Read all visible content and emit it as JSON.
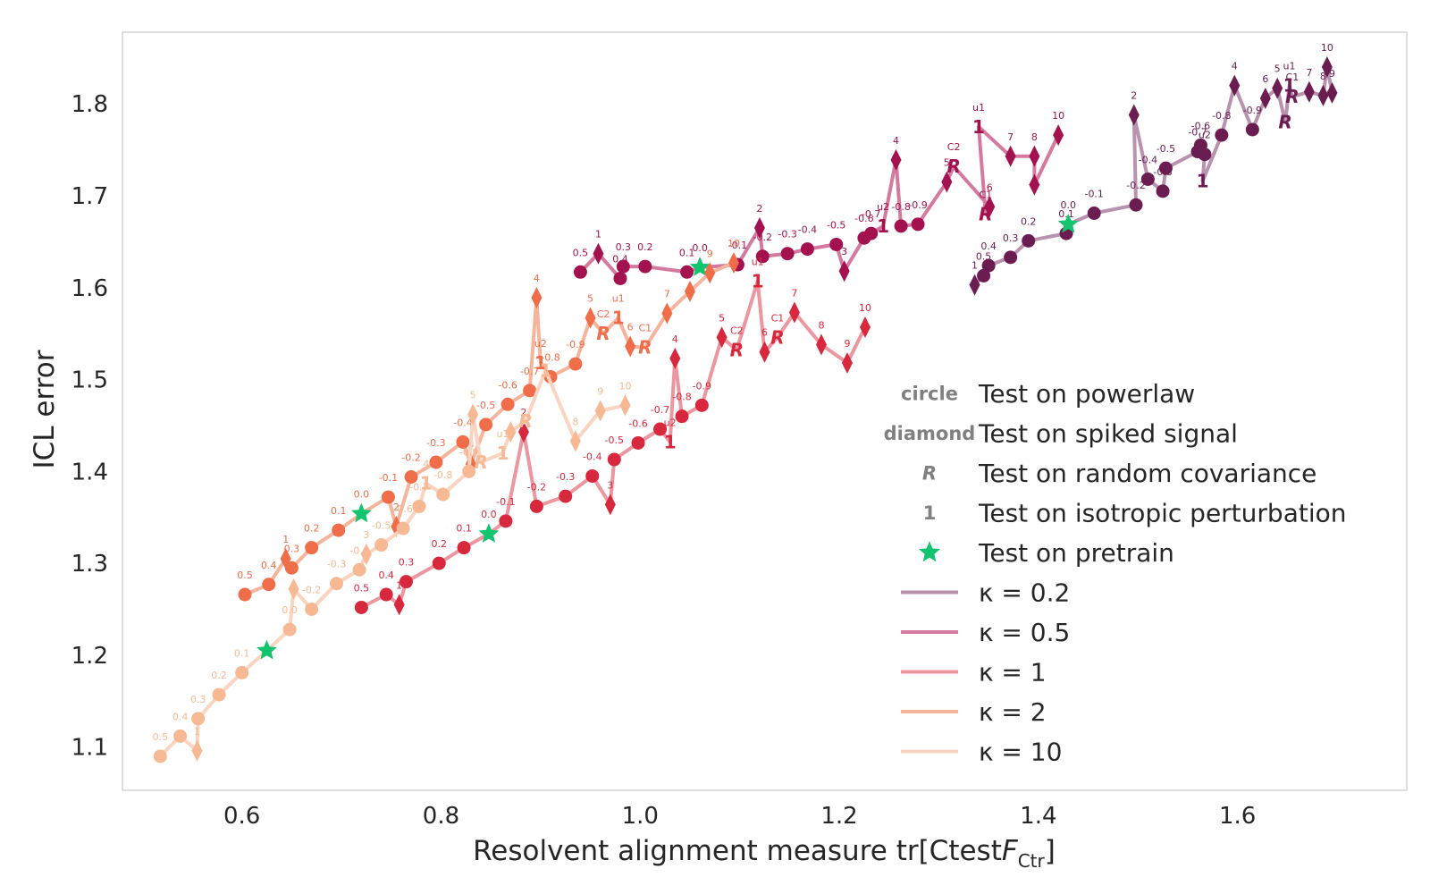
{
  "chart_data": {
    "type": "line",
    "xlabel": "Resolvent alignment measure tr[Ctest",
    "xlabel_italic": "F",
    "xlabel_sub": "Ctr",
    "xlabel_close": "]",
    "ylabel": "ICL error",
    "xlim": [
      0.48,
      1.77
    ],
    "ylim": [
      1.053,
      1.878
    ],
    "xticks": [
      0.6,
      0.8,
      1.0,
      1.2,
      1.4,
      1.6
    ],
    "xtick_labels": [
      "0.6",
      "0.8",
      "1.0",
      "1.2",
      "1.4",
      "1.6"
    ],
    "yticks": [
      1.1,
      1.2,
      1.3,
      1.4,
      1.5,
      1.6,
      1.7,
      1.8
    ],
    "ytick_labels": [
      "1.1",
      "1.2",
      "1.3",
      "1.4",
      "1.5",
      "1.6",
      "1.7",
      "1.8"
    ],
    "grid": false,
    "legend_position": "lower-right",
    "legend_markers": [
      {
        "label": "Test on powerlaw",
        "marker": "circle",
        "color": "#808080"
      },
      {
        "label": "Test on spiked signal",
        "marker": "diamond",
        "color": "#808080"
      },
      {
        "label": "Test on random covariance",
        "marker": "R",
        "color": "#808080"
      },
      {
        "label": "Test on isotropic perturbation",
        "marker": "1",
        "color": "#808080"
      },
      {
        "label": "Test on pretrain",
        "marker": "star",
        "color": "#12c46e"
      }
    ],
    "legend_kappa_prefix": "κ =",
    "series": [
      {
        "name": "0.2",
        "color": "#6b1d52",
        "line_color": "#b892ae",
        "points": [
          {
            "x": 1.336,
            "y": 1.603,
            "m": "d",
            "label": "1"
          },
          {
            "x": 1.345,
            "y": 1.613,
            "m": "o",
            "label": "0.5"
          },
          {
            "x": 1.35,
            "y": 1.624,
            "m": "o",
            "label": "0.4"
          },
          {
            "x": 1.372,
            "y": 1.633,
            "m": "o",
            "label": "0.3"
          },
          {
            "x": 1.39,
            "y": 1.651,
            "m": "o",
            "label": "0.2"
          },
          {
            "x": 1.428,
            "y": 1.659,
            "m": "o",
            "label": "0.1"
          },
          {
            "x": 1.43,
            "y": 1.669,
            "m": "star",
            "label": "0.0"
          },
          {
            "x": 1.456,
            "y": 1.681,
            "m": "o",
            "label": "-0.1"
          },
          {
            "x": 1.498,
            "y": 1.69,
            "m": "o",
            "label": "-0.2"
          },
          {
            "x": 1.496,
            "y": 1.788,
            "m": "d",
            "label": "2"
          },
          {
            "x": 1.51,
            "y": 1.718,
            "m": "o",
            "label": "-0.4"
          },
          {
            "x": 1.525,
            "y": 1.705,
            "m": "o",
            "label": "-0.3"
          },
          {
            "x": 1.528,
            "y": 1.73,
            "m": "o",
            "label": "-0.5"
          },
          {
            "x": 1.56,
            "y": 1.748,
            "m": "o",
            "label": "-0.7"
          },
          {
            "x": 1.563,
            "y": 1.755,
            "m": "o",
            "label": "-0.6"
          },
          {
            "x": 1.567,
            "y": 1.745,
            "m": "o",
            "label": "u2"
          },
          {
            "x": 1.565,
            "y": 1.716,
            "m": "1",
            "label": ""
          },
          {
            "x": 1.584,
            "y": 1.766,
            "m": "o",
            "label": "-0.8"
          },
          {
            "x": 1.597,
            "y": 1.82,
            "m": "d",
            "label": "4"
          },
          {
            "x": 1.615,
            "y": 1.772,
            "m": "o",
            "label": "-0.9"
          },
          {
            "x": 1.628,
            "y": 1.806,
            "m": "d",
            "label": "6"
          },
          {
            "x": 1.64,
            "y": 1.817,
            "m": "d",
            "label": "5"
          },
          {
            "x": 1.648,
            "y": 1.78,
            "m": "R",
            "label": ""
          },
          {
            "x": 1.652,
            "y": 1.82,
            "m": "1",
            "label": "u1"
          },
          {
            "x": 1.655,
            "y": 1.808,
            "m": "R",
            "label": "C1"
          },
          {
            "x": 1.672,
            "y": 1.813,
            "m": "d",
            "label": "7"
          },
          {
            "x": 1.686,
            "y": 1.809,
            "m": "d",
            "label": "8"
          },
          {
            "x": 1.69,
            "y": 1.84,
            "m": "d",
            "label": "10"
          },
          {
            "x": 1.695,
            "y": 1.812,
            "m": "d",
            "label": "9"
          }
        ]
      },
      {
        "name": "0.5",
        "color": "#a3124f",
        "line_color": "#d47aa0",
        "points": [
          {
            "x": 0.94,
            "y": 1.617,
            "m": "o",
            "label": "0.5"
          },
          {
            "x": 0.958,
            "y": 1.637,
            "m": "d",
            "label": "1"
          },
          {
            "x": 0.98,
            "y": 1.61,
            "m": "o",
            "label": "0.4"
          },
          {
            "x": 0.983,
            "y": 1.623,
            "m": "o",
            "label": "0.3"
          },
          {
            "x": 1.005,
            "y": 1.623,
            "m": "o",
            "label": "0.2"
          },
          {
            "x": 1.047,
            "y": 1.617,
            "m": "o",
            "label": "0.1"
          },
          {
            "x": 1.06,
            "y": 1.622,
            "m": "star",
            "label": "0.0"
          },
          {
            "x": 1.098,
            "y": 1.625,
            "m": "o",
            "label": "-0.1"
          },
          {
            "x": 1.12,
            "y": 1.665,
            "m": "d",
            "label": "2"
          },
          {
            "x": 1.123,
            "y": 1.634,
            "m": "o",
            "label": "-0.2"
          },
          {
            "x": 1.148,
            "y": 1.637,
            "m": "o",
            "label": "-0.3"
          },
          {
            "x": 1.168,
            "y": 1.642,
            "m": "o",
            "label": "-0.4"
          },
          {
            "x": 1.197,
            "y": 1.647,
            "m": "o",
            "label": "-0.5"
          },
          {
            "x": 1.205,
            "y": 1.618,
            "m": "d",
            "label": "3"
          },
          {
            "x": 1.225,
            "y": 1.654,
            "m": "o",
            "label": "-0.6"
          },
          {
            "x": 1.232,
            "y": 1.659,
            "m": "o",
            "label": "-0.7"
          },
          {
            "x": 1.244,
            "y": 1.667,
            "m": "1",
            "label": "u2"
          },
          {
            "x": 1.257,
            "y": 1.739,
            "m": "d",
            "label": "4"
          },
          {
            "x": 1.262,
            "y": 1.667,
            "m": "o",
            "label": "-0.8"
          },
          {
            "x": 1.279,
            "y": 1.669,
            "m": "o",
            "label": "-0.9"
          },
          {
            "x": 1.308,
            "y": 1.715,
            "m": "d",
            "label": "5"
          },
          {
            "x": 1.315,
            "y": 1.732,
            "m": "R",
            "label": "C2"
          },
          {
            "x": 1.351,
            "y": 1.688,
            "m": "d",
            "label": "6"
          },
          {
            "x": 1.347,
            "y": 1.68,
            "m": "R",
            "label": "C1"
          },
          {
            "x": 1.34,
            "y": 1.775,
            "m": "1",
            "label": "u1"
          },
          {
            "x": 1.372,
            "y": 1.743,
            "m": "d",
            "label": "7"
          },
          {
            "x": 1.396,
            "y": 1.743,
            "m": "d",
            "label": "8"
          },
          {
            "x": 1.396,
            "y": 1.712,
            "m": "d",
            "label": ""
          },
          {
            "x": 1.42,
            "y": 1.766,
            "m": "d",
            "label": "10"
          }
        ]
      },
      {
        "name": "1",
        "color": "#d8283d",
        "line_color": "#ec96a0",
        "points": [
          {
            "x": 0.72,
            "y": 1.252,
            "m": "o",
            "label": "0.5"
          },
          {
            "x": 0.745,
            "y": 1.266,
            "m": "o",
            "label": "0.4"
          },
          {
            "x": 0.758,
            "y": 1.255,
            "m": "d",
            "label": "1"
          },
          {
            "x": 0.765,
            "y": 1.28,
            "m": "o",
            "label": "0.3"
          },
          {
            "x": 0.798,
            "y": 1.3,
            "m": "o",
            "label": "0.2"
          },
          {
            "x": 0.823,
            "y": 1.317,
            "m": "o",
            "label": "0.1"
          },
          {
            "x": 0.848,
            "y": 1.332,
            "m": "star",
            "label": "0.0"
          },
          {
            "x": 0.865,
            "y": 1.346,
            "m": "o",
            "label": "-0.1"
          },
          {
            "x": 0.883,
            "y": 1.443,
            "m": "d",
            "label": "2"
          },
          {
            "x": 0.896,
            "y": 1.362,
            "m": "o",
            "label": "-0.2"
          },
          {
            "x": 0.925,
            "y": 1.373,
            "m": "o",
            "label": "-0.3"
          },
          {
            "x": 0.952,
            "y": 1.395,
            "m": "o",
            "label": "-0.4"
          },
          {
            "x": 0.97,
            "y": 1.364,
            "m": "d",
            "label": "3"
          },
          {
            "x": 0.974,
            "y": 1.413,
            "m": "o",
            "label": "-0.5"
          },
          {
            "x": 0.998,
            "y": 1.431,
            "m": "o",
            "label": "-0.6"
          },
          {
            "x": 1.02,
            "y": 1.446,
            "m": "o",
            "label": "-0.7"
          },
          {
            "x": 1.03,
            "y": 1.432,
            "m": "1",
            "label": "u2"
          },
          {
            "x": 1.035,
            "y": 1.523,
            "m": "d",
            "label": "4"
          },
          {
            "x": 1.042,
            "y": 1.46,
            "m": "o",
            "label": "-0.8"
          },
          {
            "x": 1.062,
            "y": 1.472,
            "m": "o",
            "label": "-0.9"
          },
          {
            "x": 1.082,
            "y": 1.546,
            "m": "d",
            "label": "5"
          },
          {
            "x": 1.097,
            "y": 1.532,
            "m": "R",
            "label": "C2"
          },
          {
            "x": 1.118,
            "y": 1.607,
            "m": "1",
            "label": "u1"
          },
          {
            "x": 1.125,
            "y": 1.53,
            "m": "d",
            "label": "6"
          },
          {
            "x": 1.138,
            "y": 1.546,
            "m": "R",
            "label": "C1"
          },
          {
            "x": 1.155,
            "y": 1.573,
            "m": "d",
            "label": "7"
          },
          {
            "x": 1.182,
            "y": 1.538,
            "m": "d",
            "label": "8"
          },
          {
            "x": 1.208,
            "y": 1.518,
            "m": "d",
            "label": "9"
          },
          {
            "x": 1.226,
            "y": 1.557,
            "m": "d",
            "label": "10"
          }
        ]
      },
      {
        "name": "2",
        "color": "#ef6d48",
        "line_color": "#f5b49c",
        "points": [
          {
            "x": 0.603,
            "y": 1.266,
            "m": "o",
            "label": "0.5"
          },
          {
            "x": 0.627,
            "y": 1.277,
            "m": "o",
            "label": "0.4"
          },
          {
            "x": 0.644,
            "y": 1.305,
            "m": "d",
            "label": "1"
          },
          {
            "x": 0.65,
            "y": 1.295,
            "m": "o",
            "label": "0.3"
          },
          {
            "x": 0.67,
            "y": 1.317,
            "m": "o",
            "label": "0.2"
          },
          {
            "x": 0.697,
            "y": 1.336,
            "m": "o",
            "label": "0.1"
          },
          {
            "x": 0.72,
            "y": 1.354,
            "m": "star",
            "label": "0.0"
          },
          {
            "x": 0.747,
            "y": 1.372,
            "m": "o",
            "label": "-0.1"
          },
          {
            "x": 0.755,
            "y": 1.34,
            "m": "d",
            "label": "2"
          },
          {
            "x": 0.77,
            "y": 1.394,
            "m": "o",
            "label": "-0.2"
          },
          {
            "x": 0.795,
            "y": 1.41,
            "m": "o",
            "label": "-0.3"
          },
          {
            "x": 0.822,
            "y": 1.432,
            "m": "o",
            "label": "-0.4"
          },
          {
            "x": 0.83,
            "y": 1.408,
            "m": "d",
            "label": "3"
          },
          {
            "x": 0.845,
            "y": 1.451,
            "m": "o",
            "label": "-0.5"
          },
          {
            "x": 0.867,
            "y": 1.473,
            "m": "o",
            "label": "-0.6"
          },
          {
            "x": 0.889,
            "y": 1.488,
            "m": "o",
            "label": "-0.7"
          },
          {
            "x": 0.896,
            "y": 1.589,
            "m": "d",
            "label": "4"
          },
          {
            "x": 0.9,
            "y": 1.518,
            "m": "1",
            "label": "u2"
          },
          {
            "x": 0.91,
            "y": 1.503,
            "m": "o",
            "label": "-0.8"
          },
          {
            "x": 0.935,
            "y": 1.517,
            "m": "o",
            "label": "-0.9"
          },
          {
            "x": 0.95,
            "y": 1.567,
            "m": "d",
            "label": "5"
          },
          {
            "x": 0.963,
            "y": 1.55,
            "m": "R",
            "label": "C2"
          },
          {
            "x": 0.978,
            "y": 1.567,
            "m": "1",
            "label": "u1"
          },
          {
            "x": 0.99,
            "y": 1.536,
            "m": "d",
            "label": "6"
          },
          {
            "x": 1.005,
            "y": 1.535,
            "m": "R",
            "label": "C1"
          },
          {
            "x": 1.027,
            "y": 1.572,
            "m": "d",
            "label": "7"
          },
          {
            "x": 1.05,
            "y": 1.596,
            "m": "d",
            "label": ""
          },
          {
            "x": 1.07,
            "y": 1.616,
            "m": "d",
            "label": "9"
          },
          {
            "x": 1.094,
            "y": 1.627,
            "m": "d",
            "label": "10"
          }
        ]
      },
      {
        "name": "10",
        "color": "#f6b993",
        "line_color": "#f9d4c0",
        "points": [
          {
            "x": 0.518,
            "y": 1.09,
            "m": "o",
            "label": "0.5"
          },
          {
            "x": 0.538,
            "y": 1.112,
            "m": "o",
            "label": "0.4"
          },
          {
            "x": 0.555,
            "y": 1.096,
            "m": "d",
            "label": "1"
          },
          {
            "x": 0.556,
            "y": 1.131,
            "m": "o",
            "label": "0.3"
          },
          {
            "x": 0.577,
            "y": 1.157,
            "m": "o",
            "label": "0.2"
          },
          {
            "x": 0.6,
            "y": 1.181,
            "m": "o",
            "label": "0.1"
          },
          {
            "x": 0.625,
            "y": 1.205,
            "m": "star",
            "label": ""
          },
          {
            "x": 0.648,
            "y": 1.228,
            "m": "o",
            "label": "0.0"
          },
          {
            "x": 0.652,
            "y": 1.272,
            "m": "d",
            "label": ""
          },
          {
            "x": 0.67,
            "y": 1.25,
            "m": "o",
            "label": "-0.2"
          },
          {
            "x": 0.695,
            "y": 1.278,
            "m": "o",
            "label": "-0.3"
          },
          {
            "x": 0.718,
            "y": 1.293,
            "m": "o",
            "label": "-0.4"
          },
          {
            "x": 0.725,
            "y": 1.31,
            "m": "d",
            "label": "3"
          },
          {
            "x": 0.74,
            "y": 1.32,
            "m": "o",
            "label": "-0.5"
          },
          {
            "x": 0.762,
            "y": 1.338,
            "m": "o",
            "label": "-0.6"
          },
          {
            "x": 0.778,
            "y": 1.362,
            "m": "o",
            "label": "-0.7"
          },
          {
            "x": 0.785,
            "y": 1.387,
            "m": "1",
            "label": "4"
          },
          {
            "x": 0.802,
            "y": 1.375,
            "m": "o",
            "label": "-0.8"
          },
          {
            "x": 0.828,
            "y": 1.4,
            "m": "o",
            "label": "-0.9"
          },
          {
            "x": 0.832,
            "y": 1.462,
            "m": "d",
            "label": "5"
          },
          {
            "x": 0.84,
            "y": 1.41,
            "m": "R",
            "label": ""
          },
          {
            "x": 0.862,
            "y": 1.42,
            "m": "1",
            "label": "u1"
          },
          {
            "x": 0.87,
            "y": 1.443,
            "m": "d",
            "label": ""
          },
          {
            "x": 0.885,
            "y": 1.455,
            "m": "R",
            "label": ""
          },
          {
            "x": 0.905,
            "y": 1.51,
            "m": "1",
            "label": ""
          },
          {
            "x": 0.935,
            "y": 1.433,
            "m": "d",
            "label": "8"
          },
          {
            "x": 0.96,
            "y": 1.466,
            "m": "d",
            "label": "9"
          },
          {
            "x": 0.985,
            "y": 1.472,
            "m": "d",
            "label": "10"
          }
        ]
      }
    ]
  }
}
